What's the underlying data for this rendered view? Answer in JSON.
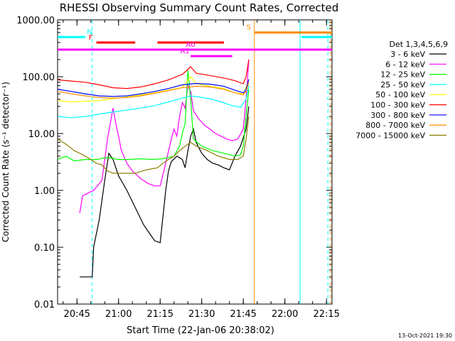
{
  "chart_data": {
    "type": "line",
    "title": "RHESSI Observing Summary Count Rates, Corrected",
    "xlabel": "Start Time (22-Jan-06 20:38:02)",
    "ylabel": "Corrected Count Rate (s⁻¹ detector⁻¹)",
    "yscale": "log",
    "ylim": [
      0.01,
      1000
    ],
    "xlim_minutes_after_start": [
      0,
      99
    ],
    "x_ticks": [
      "20:45",
      "21:00",
      "21:15",
      "21:30",
      "21:45",
      "22:00",
      "22:15"
    ],
    "y_ticks": [
      "0.01",
      "0.10",
      "1.00",
      "10.00",
      "100.00",
      "1000.00"
    ],
    "legend_title": "Det 1,3,4,5,6,9",
    "legend_position": "right",
    "footer_date": "13-Oct-2021 19:30",
    "series": [
      {
        "name": "3 - 6 keV",
        "color": "#000000",
        "points": [
          [
            8,
            0.03
          ],
          [
            12.5,
            0.03
          ],
          [
            13,
            0.1
          ],
          [
            15,
            0.3
          ],
          [
            17,
            1.5
          ],
          [
            18.5,
            4.5
          ],
          [
            20,
            3.5
          ],
          [
            22,
            1.8
          ],
          [
            25,
            1.0
          ],
          [
            28,
            0.5
          ],
          [
            31,
            0.25
          ],
          [
            33,
            0.18
          ],
          [
            35,
            0.13
          ],
          [
            37,
            0.12
          ],
          [
            39,
            1.0
          ],
          [
            40,
            2.2
          ],
          [
            41,
            3.2
          ],
          [
            43,
            4.0
          ],
          [
            45,
            3.5
          ],
          [
            46,
            2.5
          ],
          [
            47,
            5.0
          ],
          [
            48,
            9.0
          ],
          [
            49,
            12.0
          ],
          [
            50,
            7.0
          ],
          [
            52,
            4.5
          ],
          [
            54,
            3.5
          ],
          [
            56,
            3.0
          ],
          [
            58,
            2.8
          ],
          [
            60,
            2.5
          ],
          [
            62,
            2.3
          ],
          [
            64,
            4.0
          ],
          [
            66,
            6.0
          ],
          [
            68,
            12.0
          ],
          [
            69,
            30.0
          ]
        ]
      },
      {
        "name": "6 - 12 keV",
        "color": "#ff00ff",
        "points": [
          [
            8,
            0.4
          ],
          [
            9,
            0.8
          ],
          [
            11,
            0.9
          ],
          [
            13,
            1.0
          ],
          [
            16,
            1.5
          ],
          [
            18,
            8.0
          ],
          [
            19,
            15.0
          ],
          [
            20,
            28.0
          ],
          [
            21,
            15.0
          ],
          [
            22,
            9.0
          ],
          [
            23,
            5.0
          ],
          [
            25,
            3.0
          ],
          [
            27,
            2.2
          ],
          [
            30,
            1.6
          ],
          [
            33,
            1.3
          ],
          [
            35,
            1.2
          ],
          [
            37,
            1.2
          ],
          [
            39,
            3.0
          ],
          [
            41,
            8.0
          ],
          [
            42,
            12.0
          ],
          [
            43,
            9.0
          ],
          [
            44,
            20.0
          ],
          [
            45,
            35.0
          ],
          [
            46,
            28.0
          ],
          [
            47,
            70.0
          ],
          [
            48,
            55.0
          ],
          [
            49,
            25.0
          ],
          [
            51,
            18.0
          ],
          [
            53,
            14.0
          ],
          [
            55,
            12.0
          ],
          [
            57,
            10.0
          ],
          [
            59,
            9.0
          ],
          [
            61,
            8.0
          ],
          [
            63,
            7.5
          ],
          [
            65,
            8.0
          ],
          [
            67,
            12.0
          ],
          [
            68,
            40.0
          ],
          [
            69,
            200.0
          ]
        ]
      },
      {
        "name": "12 - 25 keV",
        "color": "#00ff00",
        "points": [
          [
            0,
            3.5
          ],
          [
            3,
            4.0
          ],
          [
            6,
            3.3
          ],
          [
            10,
            3.5
          ],
          [
            14,
            3.5
          ],
          [
            18,
            3.8
          ],
          [
            22,
            3.5
          ],
          [
            26,
            3.5
          ],
          [
            30,
            3.6
          ],
          [
            34,
            3.5
          ],
          [
            38,
            3.6
          ],
          [
            42,
            4.0
          ],
          [
            44,
            6.0
          ],
          [
            45,
            10.0
          ],
          [
            46,
            15.0
          ],
          [
            47,
            130.0
          ],
          [
            48,
            40.0
          ],
          [
            49,
            8.0
          ],
          [
            52,
            6.0
          ],
          [
            56,
            5.0
          ],
          [
            60,
            4.5
          ],
          [
            64,
            4.0
          ],
          [
            66,
            4.2
          ],
          [
            67,
            6.0
          ],
          [
            68,
            20.0
          ],
          [
            69,
            60.0
          ]
        ]
      },
      {
        "name": "25 - 50 keV",
        "color": "#00ffff",
        "points": [
          [
            0,
            20
          ],
          [
            5,
            19
          ],
          [
            10,
            20
          ],
          [
            15,
            22
          ],
          [
            20,
            24
          ],
          [
            25,
            26
          ],
          [
            30,
            28
          ],
          [
            35,
            31
          ],
          [
            40,
            36
          ],
          [
            45,
            42
          ],
          [
            48,
            46
          ],
          [
            51,
            44
          ],
          [
            55,
            41
          ],
          [
            59,
            36
          ],
          [
            63,
            31
          ],
          [
            66,
            29
          ],
          [
            68,
            40
          ],
          [
            69,
            70
          ]
        ]
      },
      {
        "name": "50 - 100 keV",
        "color": "#ffff00",
        "points": [
          [
            0,
            38
          ],
          [
            5,
            36
          ],
          [
            10,
            37
          ],
          [
            15,
            38
          ],
          [
            20,
            41
          ],
          [
            25,
            44
          ],
          [
            30,
            48
          ],
          [
            35,
            52
          ],
          [
            40,
            58
          ],
          [
            45,
            65
          ],
          [
            48,
            100
          ],
          [
            50,
            75
          ],
          [
            55,
            68
          ],
          [
            60,
            62
          ],
          [
            64,
            52
          ],
          [
            67,
            50
          ],
          [
            68,
            65
          ],
          [
            69,
            90
          ]
        ]
      },
      {
        "name": "100 - 300 keV",
        "color": "#ff0000",
        "points": [
          [
            0,
            88
          ],
          [
            5,
            84
          ],
          [
            10,
            80
          ],
          [
            15,
            72
          ],
          [
            20,
            64
          ],
          [
            25,
            62
          ],
          [
            30,
            66
          ],
          [
            35,
            75
          ],
          [
            40,
            88
          ],
          [
            45,
            110
          ],
          [
            48,
            150
          ],
          [
            50,
            115
          ],
          [
            55,
            105
          ],
          [
            60,
            95
          ],
          [
            64,
            85
          ],
          [
            67,
            75
          ],
          [
            68,
            100
          ],
          [
            69,
            200
          ]
        ]
      },
      {
        "name": "300 - 800 keV",
        "color": "#0000ff",
        "points": [
          [
            0,
            60
          ],
          [
            5,
            55
          ],
          [
            10,
            50
          ],
          [
            15,
            46
          ],
          [
            20,
            45
          ],
          [
            25,
            46
          ],
          [
            30,
            50
          ],
          [
            35,
            55
          ],
          [
            40,
            62
          ],
          [
            45,
            72
          ],
          [
            50,
            76
          ],
          [
            55,
            74
          ],
          [
            60,
            68
          ],
          [
            64,
            58
          ],
          [
            67,
            52
          ],
          [
            68,
            60
          ],
          [
            69,
            90
          ]
        ]
      },
      {
        "name": "800 - 7000 keV",
        "color": "#ff8c00",
        "points": [
          [
            0,
            55
          ],
          [
            5,
            50
          ],
          [
            10,
            46
          ],
          [
            15,
            43
          ],
          [
            20,
            42
          ],
          [
            25,
            43
          ],
          [
            30,
            46
          ],
          [
            35,
            51
          ],
          [
            40,
            57
          ],
          [
            45,
            64
          ],
          [
            50,
            68
          ],
          [
            55,
            66
          ],
          [
            60,
            60
          ],
          [
            64,
            52
          ],
          [
            67,
            48
          ],
          [
            68,
            55
          ],
          [
            69,
            80
          ]
        ]
      },
      {
        "name": "7000 - 15000 keV",
        "color": "#8b7d00",
        "points": [
          [
            0,
            8
          ],
          [
            2,
            7
          ],
          [
            4,
            6
          ],
          [
            6,
            5
          ],
          [
            8,
            4.5
          ],
          [
            10,
            4.0
          ],
          [
            12,
            3.5
          ],
          [
            14,
            3.0
          ],
          [
            16,
            2.8
          ],
          [
            18,
            2.2
          ],
          [
            20,
            2.0
          ],
          [
            24,
            2.0
          ],
          [
            28,
            2.0
          ],
          [
            32,
            2.3
          ],
          [
            36,
            2.5
          ],
          [
            38,
            3.0
          ],
          [
            40,
            3.5
          ],
          [
            42,
            4.0
          ],
          [
            44,
            5.0
          ],
          [
            46,
            6.0
          ],
          [
            48,
            7.0
          ],
          [
            50,
            6.0
          ],
          [
            54,
            5.0
          ],
          [
            58,
            4.0
          ],
          [
            62,
            3.5
          ],
          [
            65,
            3.5
          ],
          [
            67,
            4.0
          ],
          [
            68,
            8.0
          ],
          [
            69,
            20.0
          ]
        ]
      }
    ],
    "state_bars": [
      {
        "label": "N",
        "color": "#00ffff",
        "level": 500,
        "segments": [
          [
            0,
            10
          ],
          [
            88,
            99
          ]
        ]
      },
      {
        "label": "F",
        "color": "#ff0000",
        "level": 400,
        "segments": [
          [
            14,
            28
          ],
          [
            36,
            60
          ]
        ]
      },
      {
        "label": "S",
        "color": "#ff8c00",
        "level": 600,
        "segments": [
          [
            71,
            99
          ]
        ]
      },
      {
        "label": "A0",
        "color": "#ff00ff",
        "level": 300,
        "segments": [
          [
            0,
            99
          ]
        ]
      },
      {
        "label": "A1",
        "color": "#ff00ff",
        "level": 230,
        "segments": [
          [
            48,
            63
          ]
        ]
      }
    ],
    "vertical_lines": [
      {
        "color": "#00ffff",
        "dashed": true,
        "x": 12.5
      },
      {
        "color": "#00ffff",
        "dashed": false,
        "x": 87.5
      },
      {
        "color": "#00ffff",
        "dashed": true,
        "x": 97.5
      },
      {
        "color": "#ff8c00",
        "dashed": false,
        "x": 71
      },
      {
        "color": "#ff8c00",
        "dashed": true,
        "x": 98.5
      }
    ]
  }
}
